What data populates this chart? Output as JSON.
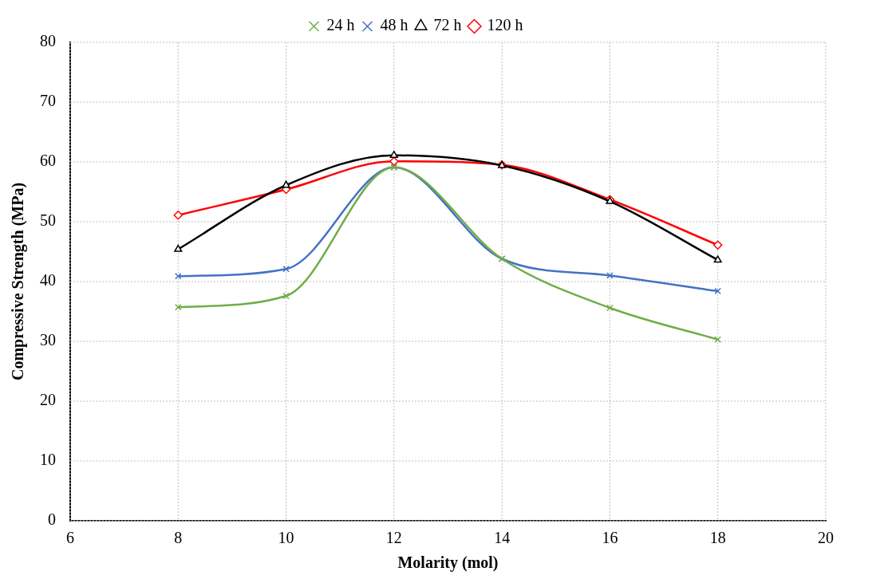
{
  "chart_data": {
    "type": "line",
    "xlabel": "Molarity (mol)",
    "ylabel": "Compressive Strength (MPa)",
    "xlim": [
      6,
      20
    ],
    "xticks": [
      6,
      8,
      10,
      12,
      14,
      16,
      18,
      20
    ],
    "ylim": [
      0,
      80
    ],
    "yticks": [
      0,
      10,
      20,
      30,
      40,
      50,
      60,
      70,
      80
    ],
    "grid": true,
    "legend": "top",
    "x": [
      8,
      10,
      12,
      14,
      16,
      18
    ],
    "series": [
      {
        "name": "24 h",
        "color": "#70ad47",
        "marker": "cross",
        "values": [
          35.7,
          37.6,
          59.1,
          43.8,
          35.6,
          30.3
        ]
      },
      {
        "name": "48 h",
        "color": "#4472c4",
        "marker": "cross",
        "values": [
          40.9,
          42.1,
          59.1,
          43.8,
          41.0,
          38.4
        ]
      },
      {
        "name": "72 h",
        "color": "#000000",
        "marker": "triangle",
        "values": [
          45.4,
          56.1,
          61.1,
          59.4,
          53.4,
          43.6
        ]
      },
      {
        "name": "120 h",
        "color": "#ff0000",
        "marker": "diamond",
        "values": [
          51.1,
          55.4,
          60.1,
          59.5,
          53.7,
          46.1
        ]
      }
    ]
  }
}
